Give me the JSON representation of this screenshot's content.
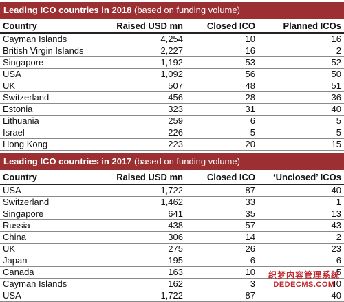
{
  "table_2018": {
    "title_bold": "Leading ICO countries in 2018",
    "title_rest": " (based on funding volume)",
    "headers": [
      "Country",
      "Raised USD mn",
      "Closed ICO",
      "Planned ICOs"
    ],
    "rows": [
      [
        "Cayman Islands",
        "4,254",
        "10",
        "16"
      ],
      [
        "British Virgin Islands",
        "2,227",
        "16",
        "2"
      ],
      [
        "Singapore",
        "1,192",
        "53",
        "52"
      ],
      [
        "USA",
        "1,092",
        "56",
        "50"
      ],
      [
        "UK",
        "507",
        "48",
        "51"
      ],
      [
        "Switzerland",
        "456",
        "28",
        "36"
      ],
      [
        "Estonia",
        "323",
        "31",
        "40"
      ],
      [
        "Lithuania",
        "259",
        "6",
        "5"
      ],
      [
        "Israel",
        "226",
        "5",
        "5"
      ],
      [
        "Hong Kong",
        "223",
        "20",
        "15"
      ]
    ]
  },
  "table_2017": {
    "title_bold": "Leading ICO countries in 2017",
    "title_rest": " (based on funding volume)",
    "headers": [
      "Country",
      "Raised USD mn",
      "Closed ICO",
      "‘Unclosed’ ICOs"
    ],
    "rows": [
      [
        "USA",
        "1,722",
        "87",
        "40"
      ],
      [
        "Switzerland",
        "1,462",
        "33",
        "1"
      ],
      [
        "Singapore",
        "641",
        "35",
        "13"
      ],
      [
        "Russia",
        "438",
        "57",
        "43"
      ],
      [
        "China",
        "306",
        "14",
        "2"
      ],
      [
        "UK",
        "275",
        "26",
        "23"
      ],
      [
        "Japan",
        "195",
        "6",
        "6"
      ],
      [
        "Canada",
        "163",
        "10",
        "5"
      ],
      [
        "Cayman Islands",
        "162",
        "3",
        "40"
      ],
      [
        "USA",
        "1,722",
        "87",
        "40"
      ]
    ]
  },
  "watermark": {
    "line1": "织梦内容管理系统",
    "line2": "DEDECMS.COM"
  },
  "colors": {
    "title_bar": "#9b2f31",
    "watermark": "#c0282e"
  }
}
